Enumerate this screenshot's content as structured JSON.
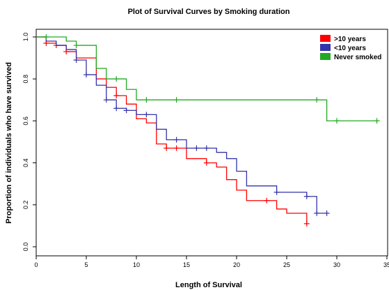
{
  "chart_data": {
    "type": "line",
    "title": "Plot of Survival Curves by Smoking duration",
    "xlabel": "Length of Survival",
    "ylabel": "Proportion of individuals who have survived",
    "xlim": [
      0,
      35
    ],
    "ylim": [
      0,
      1
    ],
    "xticks": [
      0,
      5,
      10,
      15,
      20,
      25,
      30,
      35
    ],
    "yticks": [
      0.0,
      0.2,
      0.4,
      0.6,
      0.8,
      1.0
    ],
    "grid": false,
    "legend_position": "top-right",
    "step": true,
    "series": [
      {
        "name": ">10 years",
        "color": "#ff0000",
        "steps": [
          [
            0,
            1.0
          ],
          [
            1,
            0.97
          ],
          [
            2,
            0.96
          ],
          [
            3,
            0.93
          ],
          [
            4,
            0.9
          ],
          [
            6,
            0.8
          ],
          [
            7,
            0.76
          ],
          [
            8,
            0.72
          ],
          [
            9,
            0.68
          ],
          [
            10,
            0.61
          ],
          [
            11,
            0.59
          ],
          [
            12,
            0.49
          ],
          [
            13,
            0.47
          ],
          [
            15,
            0.42
          ],
          [
            17,
            0.4
          ],
          [
            18,
            0.38
          ],
          [
            19,
            0.32
          ],
          [
            20,
            0.27
          ],
          [
            21,
            0.22
          ],
          [
            24,
            0.18
          ],
          [
            25,
            0.16
          ],
          [
            27,
            0.11
          ]
        ],
        "censored": [
          [
            1,
            0.97
          ],
          [
            2,
            0.96
          ],
          [
            3,
            0.93
          ],
          [
            8,
            0.72
          ],
          [
            13,
            0.47
          ],
          [
            14,
            0.47
          ],
          [
            17,
            0.4
          ],
          [
            23,
            0.22
          ],
          [
            27,
            0.11
          ]
        ]
      },
      {
        "name": "<10 years",
        "color": "#3333aa",
        "steps": [
          [
            0,
            1.0
          ],
          [
            1,
            0.98
          ],
          [
            2,
            0.96
          ],
          [
            3,
            0.94
          ],
          [
            4,
            0.89
          ],
          [
            5,
            0.82
          ],
          [
            6,
            0.77
          ],
          [
            7,
            0.7
          ],
          [
            8,
            0.66
          ],
          [
            9,
            0.65
          ],
          [
            10,
            0.63
          ],
          [
            12,
            0.56
          ],
          [
            13,
            0.51
          ],
          [
            15,
            0.47
          ],
          [
            18,
            0.45
          ],
          [
            19,
            0.42
          ],
          [
            20,
            0.36
          ],
          [
            21,
            0.29
          ],
          [
            24,
            0.26
          ],
          [
            27,
            0.24
          ],
          [
            28,
            0.16
          ],
          [
            29,
            0.16
          ]
        ],
        "censored": [
          [
            4,
            0.89
          ],
          [
            5,
            0.82
          ],
          [
            7,
            0.7
          ],
          [
            8,
            0.66
          ],
          [
            9,
            0.65
          ],
          [
            11,
            0.63
          ],
          [
            14,
            0.51
          ],
          [
            16,
            0.47
          ],
          [
            17,
            0.47
          ],
          [
            24,
            0.26
          ],
          [
            27,
            0.24
          ],
          [
            28,
            0.16
          ],
          [
            29,
            0.16
          ]
        ]
      },
      {
        "name": "Never smoked",
        "color": "#22aa22",
        "steps": [
          [
            0,
            1.0
          ],
          [
            3,
            0.98
          ],
          [
            4,
            0.96
          ],
          [
            6,
            0.85
          ],
          [
            7,
            0.8
          ],
          [
            9,
            0.75
          ],
          [
            10,
            0.7
          ],
          [
            29,
            0.6
          ],
          [
            34,
            0.6
          ]
        ],
        "censored": [
          [
            1,
            1.0
          ],
          [
            4,
            0.96
          ],
          [
            8,
            0.8
          ],
          [
            11,
            0.7
          ],
          [
            14,
            0.7
          ],
          [
            28,
            0.7
          ],
          [
            30,
            0.6
          ],
          [
            34,
            0.6
          ]
        ]
      }
    ]
  }
}
